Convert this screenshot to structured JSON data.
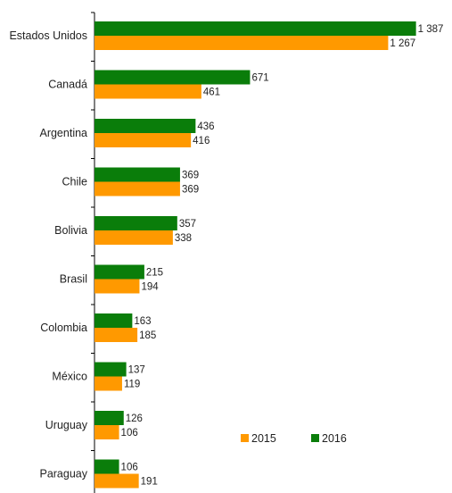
{
  "chart_data": {
    "type": "bar",
    "orientation": "horizontal",
    "categories": [
      "Estados Unidos",
      "Canadá",
      "Argentina",
      "Chile",
      "Bolivia",
      "Brasil",
      "Colombia",
      "México",
      "Uruguay",
      "Paraguay"
    ],
    "series": [
      {
        "name": "2016",
        "color": "#0a7d0a",
        "values": [
          1387,
          671,
          436,
          369,
          357,
          215,
          163,
          137,
          126,
          106
        ],
        "labels": [
          "1 387",
          "671",
          "436",
          "369",
          "357",
          "215",
          "163",
          "137",
          "126",
          "106"
        ]
      },
      {
        "name": "2015",
        "color": "#ff9900",
        "values": [
          1267,
          461,
          416,
          369,
          338,
          194,
          185,
          119,
          106,
          191
        ],
        "labels": [
          "1 267",
          "461",
          "416",
          "369",
          "338",
          "194",
          "185",
          "119",
          "106",
          "191"
        ]
      }
    ],
    "xlim": [
      0,
      1400
    ],
    "grid": false,
    "legend": {
      "placement": "bottom-right",
      "order": [
        "2015",
        "2016"
      ]
    }
  }
}
